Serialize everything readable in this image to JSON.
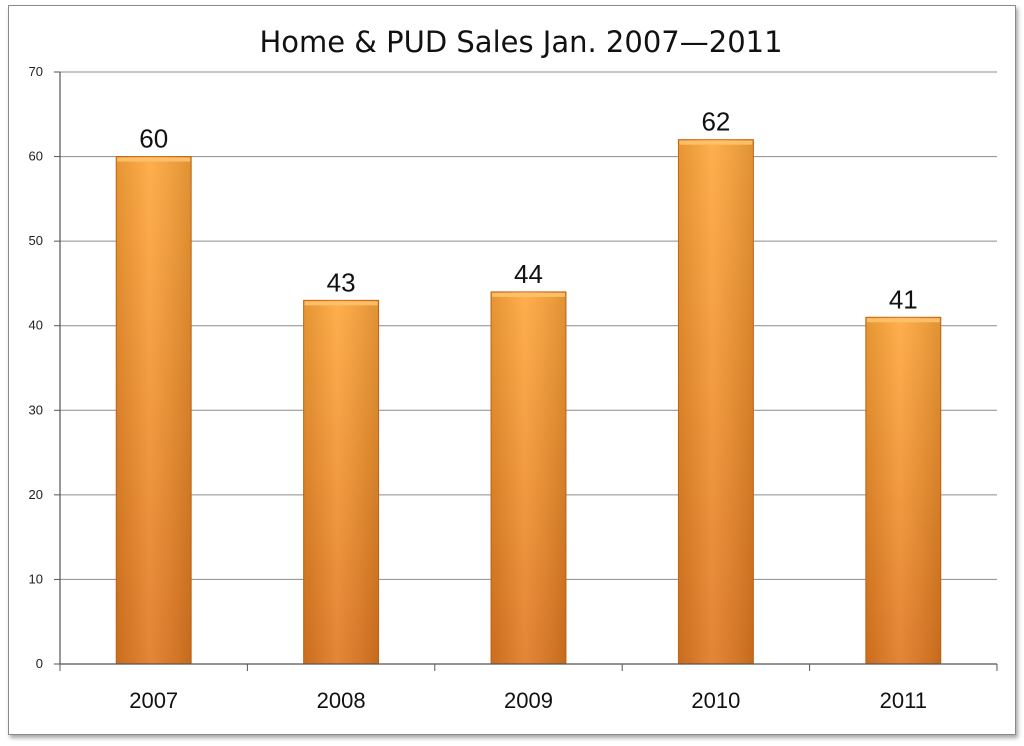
{
  "chart_data": {
    "type": "bar",
    "title": "Home & PUD Sales Jan. 2007—2011",
    "xlabel": "",
    "ylabel": "",
    "categories": [
      "2007",
      "2008",
      "2009",
      "2010",
      "2011"
    ],
    "values": [
      60,
      43,
      44,
      62,
      41
    ],
    "data_labels": [
      "60",
      "43",
      "44",
      "62",
      "41"
    ],
    "ylim": [
      0,
      70
    ],
    "yticks": [
      0,
      10,
      20,
      30,
      40,
      50,
      60,
      70
    ],
    "grid": true,
    "legend": "none",
    "bar_color": "#f0952a",
    "bar_color_light": "#ffa63a",
    "bar_color_dark": "#e07820",
    "bar_outline_color": "#c96a1a",
    "grid_color": "#8c8c8c"
  }
}
